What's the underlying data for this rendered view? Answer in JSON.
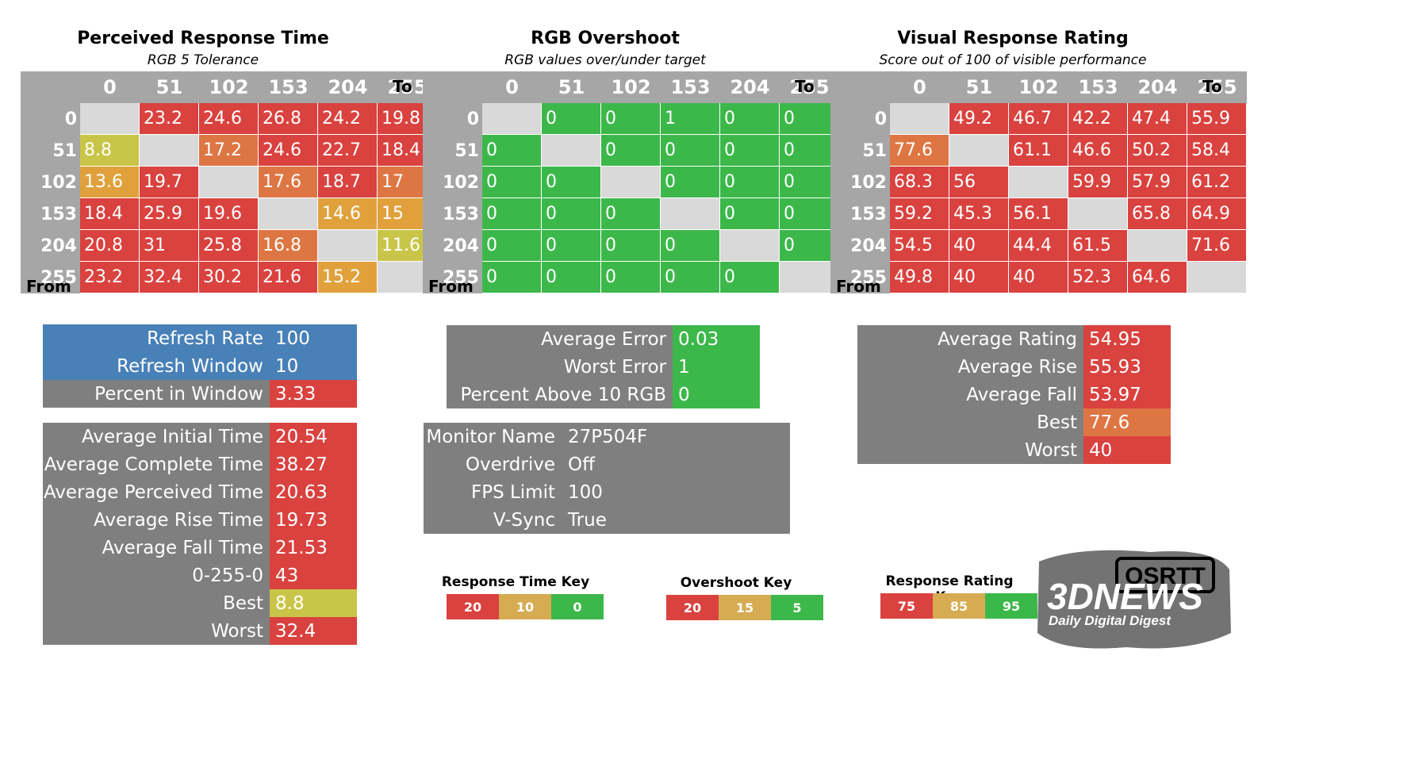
{
  "colors": {
    "red": "#d9423f",
    "orange": "#de7644",
    "amber": "#e0a13c",
    "yellow": "#c9c548",
    "green": "#3cb84a",
    "grey": "#7f7f7f",
    "header_grey": "#a6a6a6",
    "diag": "#d9d9d9",
    "blue": "#4880b8",
    "key_red": "#d9423f",
    "key_amber": "#d6ab52",
    "key_green": "#3cb84a"
  },
  "axis": {
    "to": "To",
    "from": "From"
  },
  "levels": [
    "0",
    "51",
    "102",
    "153",
    "204",
    "255"
  ],
  "panels": {
    "response": {
      "title": "Perceived Response Time",
      "subtitle": "RGB 5 Tolerance"
    },
    "overshoot": {
      "title": "RGB Overshoot",
      "subtitle": "RGB values over/under target"
    },
    "rating": {
      "title": "Visual Response Rating",
      "subtitle": "Score out of 100 of visible performance"
    }
  },
  "chart_data": [
    {
      "type": "heatmap",
      "title": "Perceived Response Time",
      "subtitle": "RGB 5 Tolerance",
      "xlabel": "To",
      "ylabel": "From",
      "x": [
        "0",
        "51",
        "102",
        "153",
        "204",
        "255"
      ],
      "y": [
        "0",
        "51",
        "102",
        "153",
        "204",
        "255"
      ],
      "values": [
        [
          null,
          "23.2",
          "24.6",
          "26.8",
          "24.2",
          "19.8"
        ],
        [
          "8.8",
          null,
          "17.2",
          "24.6",
          "22.7",
          "18.4"
        ],
        [
          "13.6",
          "19.7",
          null,
          "17.6",
          "18.7",
          "17"
        ],
        [
          "18.4",
          "25.9",
          "19.6",
          null,
          "14.6",
          "15"
        ],
        [
          "20.8",
          "31",
          "25.8",
          "16.8",
          null,
          "11.6"
        ],
        [
          "23.2",
          "32.4",
          "30.2",
          "21.6",
          "15.2",
          null
        ]
      ],
      "cell_colors": [
        [
          null,
          "red",
          "red",
          "red",
          "red",
          "red"
        ],
        [
          "yellow",
          null,
          "orange",
          "red",
          "red",
          "red"
        ],
        [
          "amber",
          "red",
          null,
          "orange",
          "red",
          "orange"
        ],
        [
          "red",
          "red",
          "red",
          null,
          "amber",
          "amber"
        ],
        [
          "red",
          "red",
          "red",
          "orange",
          null,
          "yellow"
        ],
        [
          "red",
          "red",
          "red",
          "red",
          "amber",
          null
        ]
      ]
    },
    {
      "type": "heatmap",
      "title": "RGB Overshoot",
      "subtitle": "RGB values over/under target",
      "xlabel": "To",
      "ylabel": "From",
      "x": [
        "0",
        "51",
        "102",
        "153",
        "204",
        "255"
      ],
      "y": [
        "0",
        "51",
        "102",
        "153",
        "204",
        "255"
      ],
      "values": [
        [
          null,
          "0",
          "0",
          "1",
          "0",
          "0"
        ],
        [
          "0",
          null,
          "0",
          "0",
          "0",
          "0"
        ],
        [
          "0",
          "0",
          null,
          "0",
          "0",
          "0"
        ],
        [
          "0",
          "0",
          "0",
          null,
          "0",
          "0"
        ],
        [
          "0",
          "0",
          "0",
          "0",
          null,
          "0"
        ],
        [
          "0",
          "0",
          "0",
          "0",
          "0",
          null
        ]
      ],
      "cell_colors": [
        [
          null,
          "green",
          "green",
          "green",
          "green",
          "green"
        ],
        [
          "green",
          null,
          "green",
          "green",
          "green",
          "green"
        ],
        [
          "green",
          "green",
          null,
          "green",
          "green",
          "green"
        ],
        [
          "green",
          "green",
          "green",
          null,
          "green",
          "green"
        ],
        [
          "green",
          "green",
          "green",
          "green",
          null,
          "green"
        ],
        [
          "green",
          "green",
          "green",
          "green",
          "green",
          null
        ]
      ]
    },
    {
      "type": "heatmap",
      "title": "Visual Response Rating",
      "subtitle": "Score out of 100 of visible performance",
      "xlabel": "To",
      "ylabel": "From",
      "x": [
        "0",
        "51",
        "102",
        "153",
        "204",
        "255"
      ],
      "y": [
        "0",
        "51",
        "102",
        "153",
        "204",
        "255"
      ],
      "values": [
        [
          null,
          "49.2",
          "46.7",
          "42.2",
          "47.4",
          "55.9"
        ],
        [
          "77.6",
          null,
          "61.1",
          "46.6",
          "50.2",
          "58.4"
        ],
        [
          "68.3",
          "56",
          null,
          "59.9",
          "57.9",
          "61.2"
        ],
        [
          "59.2",
          "45.3",
          "56.1",
          null,
          "65.8",
          "64.9"
        ],
        [
          "54.5",
          "40",
          "44.4",
          "61.5",
          null,
          "71.6"
        ],
        [
          "49.8",
          "40",
          "40",
          "52.3",
          "64.6",
          null
        ]
      ],
      "cell_colors": [
        [
          null,
          "red",
          "red",
          "red",
          "red",
          "red"
        ],
        [
          "orange",
          null,
          "red",
          "red",
          "red",
          "red"
        ],
        [
          "red",
          "red",
          null,
          "red",
          "red",
          "red"
        ],
        [
          "red",
          "red",
          "red",
          null,
          "red",
          "red"
        ],
        [
          "red",
          "red",
          "red",
          "red",
          null,
          "red"
        ],
        [
          "red",
          "red",
          "red",
          "red",
          "red",
          null
        ]
      ]
    }
  ],
  "refresh_table": [
    {
      "label": "Refresh Rate",
      "value": "100",
      "label_color": "blue",
      "value_color": "blue"
    },
    {
      "label": "Refresh Window",
      "value": "10",
      "label_color": "blue",
      "value_color": "blue"
    },
    {
      "label": "Percent in Window",
      "value": "3.33",
      "label_color": "grey",
      "value_color": "red"
    }
  ],
  "time_table": [
    {
      "label": "Average Initial Time",
      "value": "20.54",
      "value_color": "red"
    },
    {
      "label": "Average Complete Time",
      "value": "38.27",
      "value_color": "red"
    },
    {
      "label": "Average Perceived Time",
      "value": "20.63",
      "value_color": "red"
    },
    {
      "label": "Average Rise Time",
      "value": "19.73",
      "value_color": "red"
    },
    {
      "label": "Average Fall Time",
      "value": "21.53",
      "value_color": "red"
    },
    {
      "label": "0-255-0",
      "value": "43",
      "value_color": "red"
    },
    {
      "label": "Best",
      "value": "8.8",
      "value_color": "yellow"
    },
    {
      "label": "Worst",
      "value": "32.4",
      "value_color": "red"
    }
  ],
  "error_table": [
    {
      "label": "Average Error",
      "value": "0.03",
      "value_color": "green"
    },
    {
      "label": "Worst Error",
      "value": "1",
      "value_color": "green"
    },
    {
      "label": "Percent Above 10 RGB",
      "value": "0",
      "value_color": "green"
    }
  ],
  "monitor_table": [
    {
      "label": "Monitor Name",
      "value": "27P504F"
    },
    {
      "label": "Overdrive",
      "value": "Off"
    },
    {
      "label": "FPS Limit",
      "value": "100"
    },
    {
      "label": "V-Sync",
      "value": "True"
    }
  ],
  "rating_table": [
    {
      "label": "Average Rating",
      "value": "54.95",
      "value_color": "red"
    },
    {
      "label": "Average Rise",
      "value": "55.93",
      "value_color": "red"
    },
    {
      "label": "Average Fall",
      "value": "53.97",
      "value_color": "red"
    },
    {
      "label": "Best",
      "value": "77.6",
      "value_color": "orange"
    },
    {
      "label": "Worst",
      "value": "40",
      "value_color": "red"
    }
  ],
  "keys": {
    "response": {
      "title": "Response Time Key",
      "items": [
        "20",
        "10",
        "0"
      ]
    },
    "overshoot": {
      "title": "Overshoot Key",
      "items": [
        "20",
        "15",
        "5"
      ]
    },
    "rating": {
      "title": "Response Rating Key",
      "items": [
        "75",
        "85",
        "95"
      ]
    }
  },
  "logo": {
    "brand": "3DNEWS",
    "tagline": "Daily Digital Digest",
    "badge": "OSRTT"
  }
}
